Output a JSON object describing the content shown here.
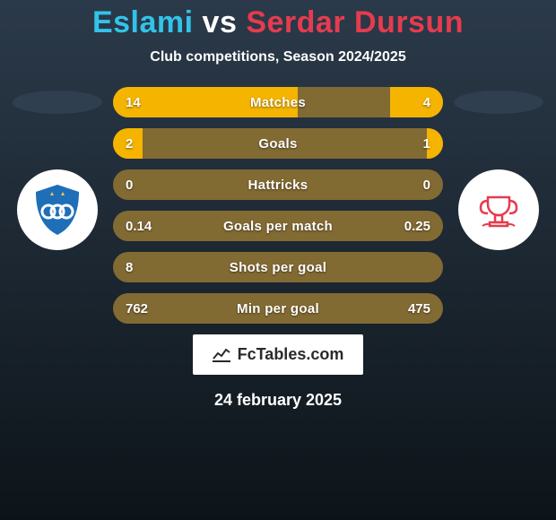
{
  "title": {
    "left_name": "Eslami",
    "vs": "vs",
    "right_name": "Serdar Dursun",
    "left_color": "#32c3ea",
    "vs_color": "#ffffff",
    "right_color": "#e63b4e"
  },
  "subtitle": "Club competitions, Season 2024/2025",
  "background": {
    "top": "#2b3a4a",
    "bottom": "#0d1419"
  },
  "left_player": {
    "ellipse_color": "#2f3f50",
    "badge_bg": "#ffffff",
    "badge_accent": "#1e6fb8",
    "badge_star": "#f2c94c"
  },
  "right_player": {
    "ellipse_color": "#2f3f50",
    "badge_bg": "#ffffff",
    "badge_accent": "#e63b4e"
  },
  "bars": {
    "track_color": "#826a33",
    "left_fill_color": "#f4b400",
    "right_fill_color": "#f4b400",
    "rows": [
      {
        "label": "Matches",
        "left": "14",
        "right": "4",
        "left_pct": 56,
        "right_pct": 16
      },
      {
        "label": "Goals",
        "left": "2",
        "right": "1",
        "left_pct": 9,
        "right_pct": 5
      },
      {
        "label": "Hattricks",
        "left": "0",
        "right": "0",
        "left_pct": 0,
        "right_pct": 0
      },
      {
        "label": "Goals per match",
        "left": "0.14",
        "right": "0.25",
        "left_pct": 0,
        "right_pct": 0
      },
      {
        "label": "Shots per goal",
        "left": "8",
        "right": "",
        "left_pct": 0,
        "right_pct": 0
      },
      {
        "label": "Min per goal",
        "left": "762",
        "right": "475",
        "left_pct": 0,
        "right_pct": 0
      }
    ]
  },
  "footer": {
    "brand_text": "FcTables.com",
    "brand_bg": "#ffffff",
    "brand_text_color": "#2a2a2a",
    "date": "24 february 2025"
  }
}
